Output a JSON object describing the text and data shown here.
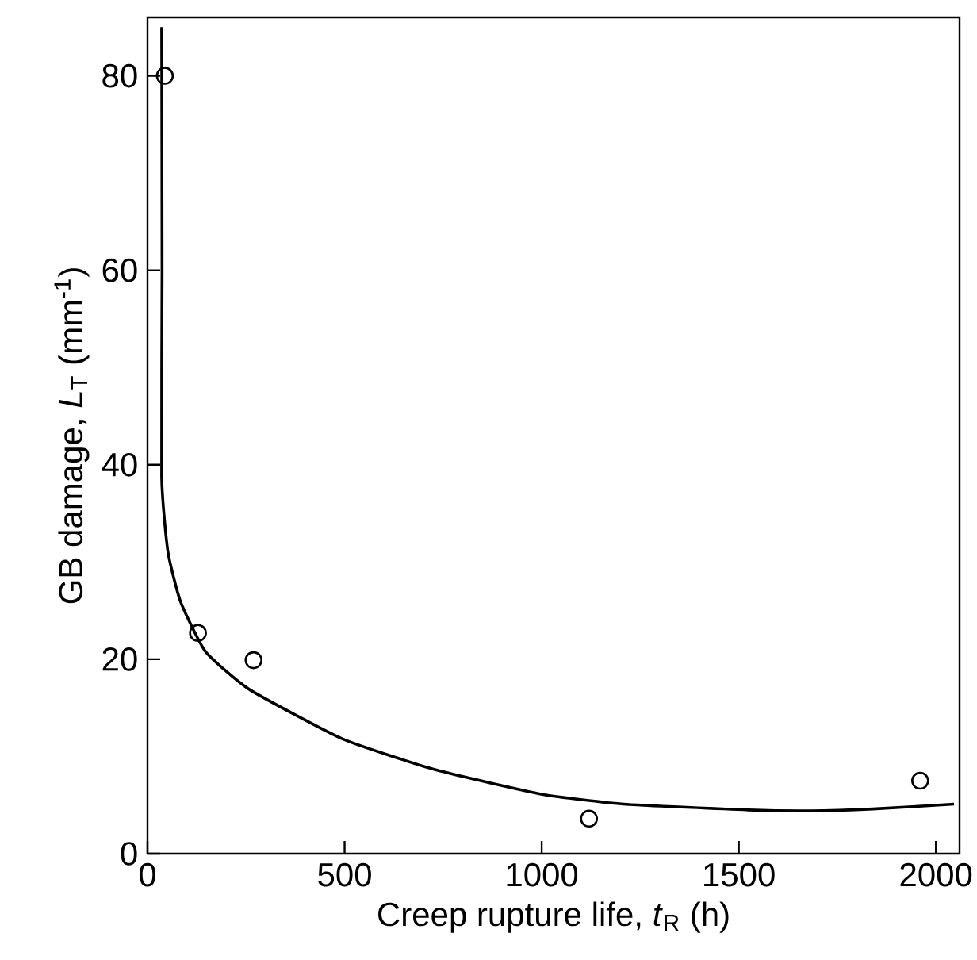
{
  "chart_data": {
    "type": "scatter",
    "xlabel": "Creep rupture life, *t*$_{R}$ (h)",
    "ylabel": "GB damage, *L*$_{T}$ (mm$^{-1}$)",
    "xlim": [
      0,
      2060
    ],
    "ylim": [
      0,
      86
    ],
    "xticks": [
      0,
      500,
      1000,
      1500,
      2000
    ],
    "yticks": [
      0,
      20,
      40,
      60,
      80
    ],
    "grid": false,
    "series": [
      {
        "marker": "circle",
        "color": "#000000",
        "x": [
          44,
          128,
          269,
          1120,
          1960
        ],
        "values": [
          80,
          22.7,
          19.9,
          3.6,
          7.5
        ]
      },
      {
        "type": "line",
        "marker": "none",
        "line_style": "solid",
        "color": "#000000",
        "x": [
          36,
          37,
          36,
          52,
          84,
          147,
          258,
          495,
          733,
          1002,
          1207,
          1524,
          1682,
          1840,
          2046
        ],
        "values": [
          85,
          60,
          38.7,
          31,
          25.9,
          20.8,
          16.9,
          11.8,
          8.6,
          6.1,
          5.1,
          4.5,
          4.4,
          4.6,
          5.1
        ]
      }
    ]
  }
}
